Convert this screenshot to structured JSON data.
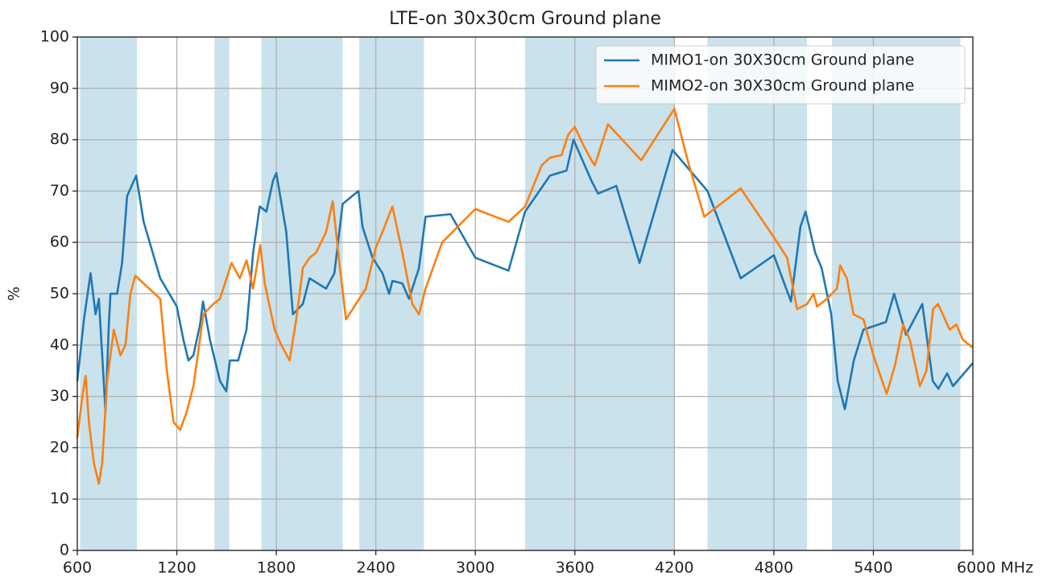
{
  "chart_data": {
    "type": "line",
    "title": "LTE-on 30x30cm Ground plane",
    "y_label": "%",
    "xlim": [
      600,
      6000
    ],
    "xticks": [
      600,
      1200,
      1800,
      2400,
      3000,
      3600,
      4200,
      4800,
      5400,
      {
        "value": 6000,
        "label": "6000 MHz"
      }
    ],
    "ylim": [
      0,
      100
    ],
    "yticks": [
      0,
      10,
      20,
      30,
      40,
      50,
      60,
      70,
      80,
      90,
      100
    ],
    "grid": true,
    "legend": "upper right",
    "band_color": "#c9e2ec",
    "bands": [
      [
        617,
        960
      ],
      [
        1427,
        1517
      ],
      [
        1710,
        2200
      ],
      [
        2300,
        2690
      ],
      [
        3300,
        4200
      ],
      [
        4400,
        5000
      ],
      [
        5150,
        5925
      ]
    ],
    "series": [
      {
        "name": "MIMO1-on 30X30cm Ground plane",
        "color": "#1f77b4",
        "x": [
          600,
          640,
          680,
          710,
          730,
          750,
          770,
          790,
          800,
          840,
          870,
          900,
          955,
          1000,
          1100,
          1200,
          1240,
          1270,
          1300,
          1340,
          1358,
          1400,
          1460,
          1498,
          1520,
          1570,
          1620,
          1660,
          1700,
          1740,
          1780,
          1800,
          1860,
          1900,
          1960,
          2000,
          2100,
          2150,
          2200,
          2295,
          2320,
          2380,
          2440,
          2480,
          2500,
          2560,
          2600,
          2660,
          2700,
          2850,
          3000,
          3200,
          3300,
          3450,
          3550,
          3592,
          3700,
          3740,
          3850,
          3990,
          4189,
          4400,
          4600,
          4800,
          4903,
          4960,
          4991,
          5049,
          5088,
          5146,
          5185,
          5228,
          5282,
          5340,
          5476,
          5525,
          5597,
          5695,
          5758,
          5792,
          5845,
          5880,
          6000
        ],
        "values": [
          33,
          45,
          54,
          46,
          49,
          38,
          27,
          44,
          50,
          50,
          56,
          69,
          73,
          64,
          53,
          47.5,
          41,
          37,
          38,
          44,
          48.5,
          41,
          33,
          31,
          37,
          37,
          43,
          58,
          67,
          66,
          72,
          73.5,
          62,
          46,
          48,
          53,
          51,
          54,
          67.5,
          70,
          63,
          57,
          54,
          50,
          52.5,
          52,
          49,
          55,
          65,
          65.5,
          57,
          54.5,
          66,
          73,
          74,
          80,
          72,
          69.5,
          71,
          56,
          78,
          70,
          53,
          57.5,
          48.5,
          63,
          66,
          58,
          55,
          46,
          33,
          27.5,
          37,
          43,
          44.5,
          50,
          42,
          48,
          33,
          31.5,
          34.5,
          32,
          36.5
        ]
      },
      {
        "name": "MIMO2-on 30X30cm Ground plane",
        "color": "#ff7f0e",
        "x": [
          600,
          630,
          650,
          670,
          700,
          730,
          750,
          780,
          820,
          860,
          890,
          920,
          950,
          1100,
          1140,
          1180,
          1220,
          1260,
          1300,
          1360,
          1420,
          1460,
          1480,
          1530,
          1580,
          1620,
          1660,
          1703,
          1730,
          1790,
          1830,
          1880,
          1920,
          1960,
          2000,
          2040,
          2100,
          2140,
          2180,
          2220,
          2300,
          2340,
          2400,
          2440,
          2500,
          2560,
          2620,
          2660,
          2700,
          2800,
          3000,
          3200,
          3300,
          3400,
          3450,
          3520,
          3560,
          3600,
          3650,
          3700,
          3720,
          3800,
          4000,
          4200,
          4280,
          4380,
          4600,
          4800,
          4880,
          4940,
          5000,
          5040,
          5060,
          5120,
          5180,
          5200,
          5240,
          5280,
          5340,
          5400,
          5480,
          5530,
          5580,
          5620,
          5680,
          5720,
          5760,
          5790,
          5860,
          5900,
          5940,
          6000
        ],
        "values": [
          22,
          30,
          34,
          25,
          17,
          13,
          17,
          33,
          43,
          38,
          40,
          50,
          53.5,
          49,
          35,
          25,
          23.5,
          27,
          32,
          46,
          48,
          49,
          51,
          56,
          53,
          56.5,
          51,
          59.5,
          52,
          43,
          40,
          37,
          45,
          55,
          57,
          58,
          62,
          68,
          56,
          45,
          49,
          51,
          59,
          62,
          67,
          58,
          48,
          46,
          51,
          60,
          66.5,
          64,
          67,
          75,
          76.5,
          77,
          81,
          82.5,
          79,
          76,
          75,
          83,
          76,
          86,
          76,
          65,
          70.5,
          61,
          57,
          47,
          48,
          50,
          47.5,
          49,
          51,
          55.5,
          53,
          46,
          45,
          38,
          30.5,
          36,
          44,
          41,
          32,
          35,
          47,
          48,
          43,
          44,
          41,
          39.5
        ]
      }
    ]
  }
}
